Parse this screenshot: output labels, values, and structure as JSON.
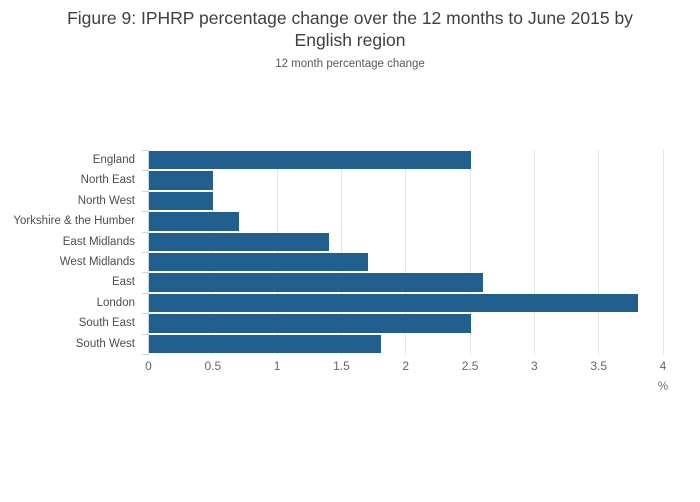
{
  "title": {
    "line1": "Figure 9: IPHRP percentage change over the 12 months to June 2015 by",
    "line2": "English region"
  },
  "subtitle": "12 month percentage change",
  "chart_data": {
    "type": "bar",
    "orientation": "horizontal",
    "title": "Figure 9: IPHRP percentage change over the 12 months to June 2015 by English region",
    "subtitle": "12 month percentage change",
    "categories": [
      "England",
      "North East",
      "North West",
      "Yorkshire & the Humber",
      "East Midlands",
      "West Midlands",
      "East",
      "London",
      "South East",
      "South West"
    ],
    "values": [
      2.5,
      0.5,
      0.5,
      0.7,
      1.4,
      1.7,
      2.6,
      3.8,
      2.5,
      1.8
    ],
    "xlabel": "%",
    "ylabel": "",
    "xlim": [
      0,
      4
    ],
    "xticks": [
      0,
      0.5,
      1,
      1.5,
      2,
      2.5,
      3,
      3.5,
      4
    ],
    "grid": true,
    "legend": "none"
  },
  "colors": {
    "bar": "#21608e",
    "grid": "#e6e6e6",
    "axis": "#ccd4dc",
    "title_text": "#404040",
    "subtitle_text": "#595959",
    "category_text": "#4d4d4d",
    "tick_text": "#666666",
    "background": "#ffffff"
  }
}
